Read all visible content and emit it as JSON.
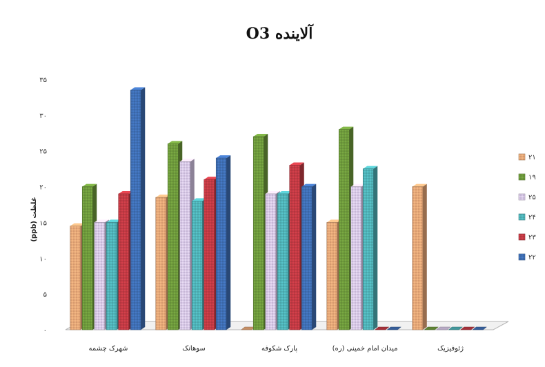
{
  "chart_data": {
    "type": "bar",
    "title": "آلاینده O3",
    "ylabel": "(ppb) غلظت",
    "ylim": [
      0,
      35
    ],
    "yticks": [
      0,
      5,
      10,
      15,
      20,
      25,
      30,
      35
    ],
    "ytick_labels": [
      "۰",
      "۵",
      "۱۰",
      "۱۵",
      "۲۰",
      "۲۵",
      "۳۰",
      "۳۵"
    ],
    "categories": [
      "شهرک چشمه",
      "سوهانک",
      "پارک شکوفه",
      "میدان امام خمینی (ره)",
      "ژئوفیزیک"
    ],
    "legend_position": "right",
    "series": [
      {
        "name": "۲۱",
        "color": "#E8A878",
        "values": [
          14.5,
          18.5,
          0,
          15.0,
          20.0
        ]
      },
      {
        "name": "۱۹",
        "color": "#6E9A3C",
        "values": [
          20.0,
          26.0,
          27.0,
          28.0,
          0
        ]
      },
      {
        "name": "۲۵",
        "color": "#D8C8E8",
        "values": [
          15.0,
          23.5,
          19.0,
          20.0,
          0
        ]
      },
      {
        "name": "۲۴",
        "color": "#4FB3B8",
        "values": [
          15.0,
          18.0,
          19.0,
          22.5,
          0
        ]
      },
      {
        "name": "۲۳",
        "color": "#C23A44",
        "values": [
          19.0,
          21.0,
          23.0,
          0,
          0
        ]
      },
      {
        "name": "۲۲",
        "color": "#3F6FB5",
        "values": [
          33.5,
          24.0,
          20.0,
          0,
          0
        ]
      }
    ]
  }
}
